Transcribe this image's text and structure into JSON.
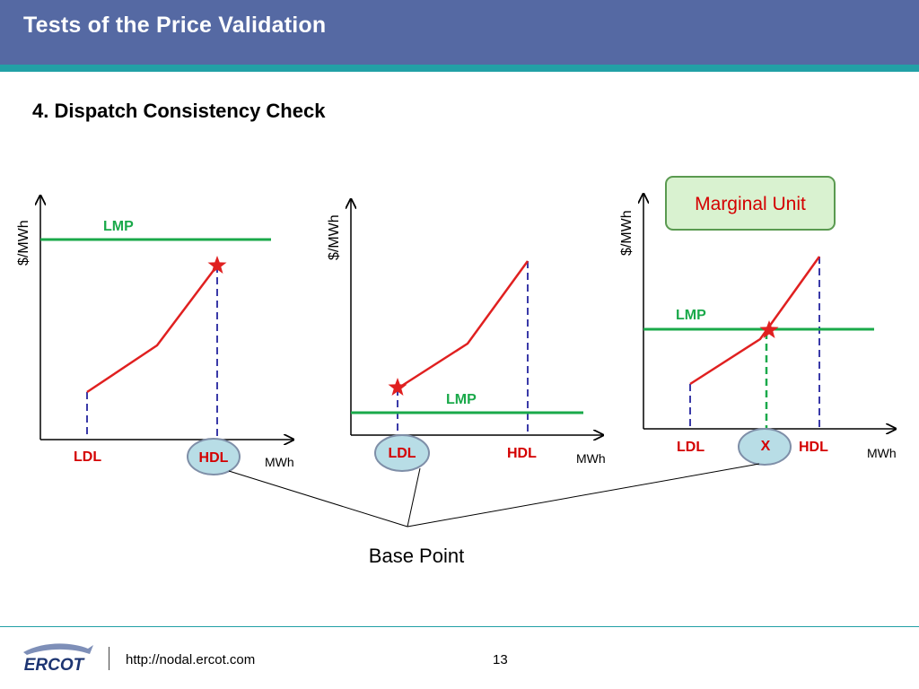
{
  "header": {
    "title": "Tests of the Price Validation"
  },
  "section": {
    "heading": "4. Dispatch Consistency Check"
  },
  "panels": [
    {
      "y_axis_label": "$/MWh",
      "x_axis_label": "MWh",
      "lmp_label": "LMP",
      "ldl_label": "LDL",
      "hdl_label": "HDL"
    },
    {
      "y_axis_label": "$/MWh",
      "x_axis_label": "MWh",
      "lmp_label": "LMP",
      "ldl_label": "LDL",
      "hdl_label": "HDL"
    },
    {
      "y_axis_label": "$/MWh",
      "x_axis_label": "MWh",
      "lmp_label": "LMP",
      "ldl_label": "LDL",
      "hdl_label": "HDL",
      "x_label": "X",
      "callout": "Marginal Unit"
    }
  ],
  "base_point_label": "Base Point",
  "colors": {
    "offer_curve": "#e02020",
    "lmp_line": "#1aa94a",
    "guide_line": "#3a3aa8",
    "bubble_fill": "#b8dde6",
    "bubble_stroke": "#7f8fa8",
    "label_red": "#d40000",
    "header_bg": "#5569a3",
    "header_bar": "#22a0a6",
    "callout_fill": "#d9f2d0",
    "callout_stroke": "#5a9a50"
  },
  "footer": {
    "logo_text": "ERCOT",
    "url": "http://nodal.ercot.com",
    "page_number": "13"
  }
}
